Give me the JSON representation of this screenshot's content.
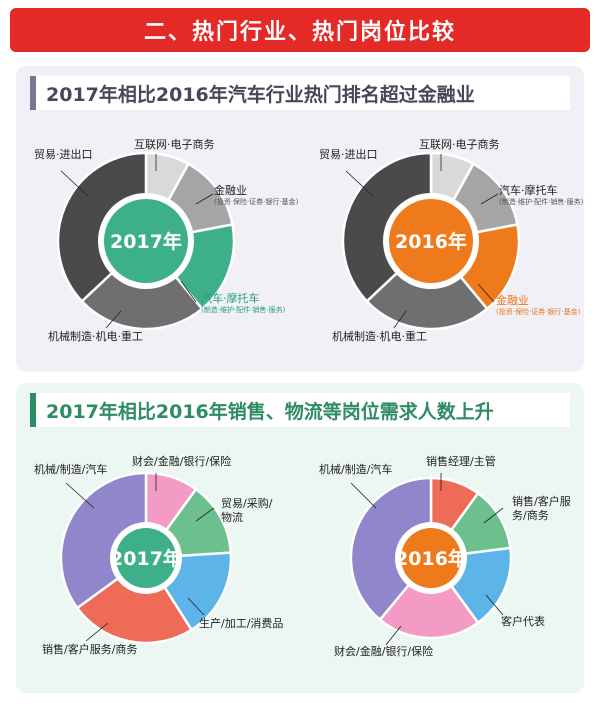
{
  "banner_title": "二、热门行业、热门岗位比较",
  "section1": {
    "heading": "2017年相比2016年汽车行业热门排名超过金融业",
    "chart_2017": {
      "center": "2017年",
      "center_color": "#3db08a",
      "slices": [
        {
          "label": "互联网·电子商务",
          "value": 8,
          "color": "#d9d9d9"
        },
        {
          "label": "金融业",
          "sub": "(投资·保险·证券·银行·基金)",
          "value": 14,
          "color": "#a5a5a5"
        },
        {
          "label": "汽车·摩托车",
          "sub": "(制造·维护·配件·销售·服务)",
          "value": 17,
          "color": "#3db08a"
        },
        {
          "label": "机械制造·机电·重工",
          "value": 24,
          "color": "#6f6f6f"
        },
        {
          "label": "贸易·进出口",
          "value": 37,
          "color": "#4a4a4a"
        }
      ]
    },
    "chart_2016": {
      "center": "2016年",
      "center_color": "#ee7a1c",
      "slices": [
        {
          "label": "互联网·电子商务",
          "value": 8,
          "color": "#d9d9d9"
        },
        {
          "label": "汽车·摩托车",
          "sub": "(制造·维护·配件·销售·服务)",
          "value": 14,
          "color": "#a5a5a5"
        },
        {
          "label": "金融业",
          "sub": "(投资·保险·证券·银行·基金)",
          "value": 17,
          "color": "#ee7a1c"
        },
        {
          "label": "机械制造·机电·重工",
          "value": 24,
          "color": "#6f6f6f"
        },
        {
          "label": "贸易·进出口",
          "value": 37,
          "color": "#4a4a4a"
        }
      ]
    }
  },
  "section2": {
    "heading": "2017年相比2016年销售、物流等岗位需求人数上升",
    "chart_2017": {
      "center": "2017年",
      "center_color": "#3db08a",
      "slices": [
        {
          "label": "财会/金融/银行/保险",
          "value": 10,
          "color": "#f39bc4"
        },
        {
          "label": "贸易/采购/物流",
          "value": 14,
          "color": "#6cc08e"
        },
        {
          "label": "生产/加工/消费品",
          "value": 17,
          "color": "#5cb4e8"
        },
        {
          "label": "销售/客户服务/商务",
          "value": 24,
          "color": "#ee6b57"
        },
        {
          "label": "机械/制造/汽车",
          "value": 35,
          "color": "#8f86cc"
        }
      ]
    },
    "chart_2016": {
      "center": "2016年",
      "center_color": "#ee7a1c",
      "slices": [
        {
          "label": "销售经理/主管",
          "value": 10,
          "color": "#ee6b57"
        },
        {
          "label": "销售/客户服务/商务",
          "value": 13,
          "color": "#6cc08e"
        },
        {
          "label": "客户代表",
          "value": 17,
          "color": "#5cb4e8"
        },
        {
          "label": "财会/金融/银行/保险",
          "value": 21,
          "color": "#f39bc4"
        },
        {
          "label": "机械/制造/汽车",
          "value": 39,
          "color": "#8f86cc"
        }
      ]
    }
  }
}
